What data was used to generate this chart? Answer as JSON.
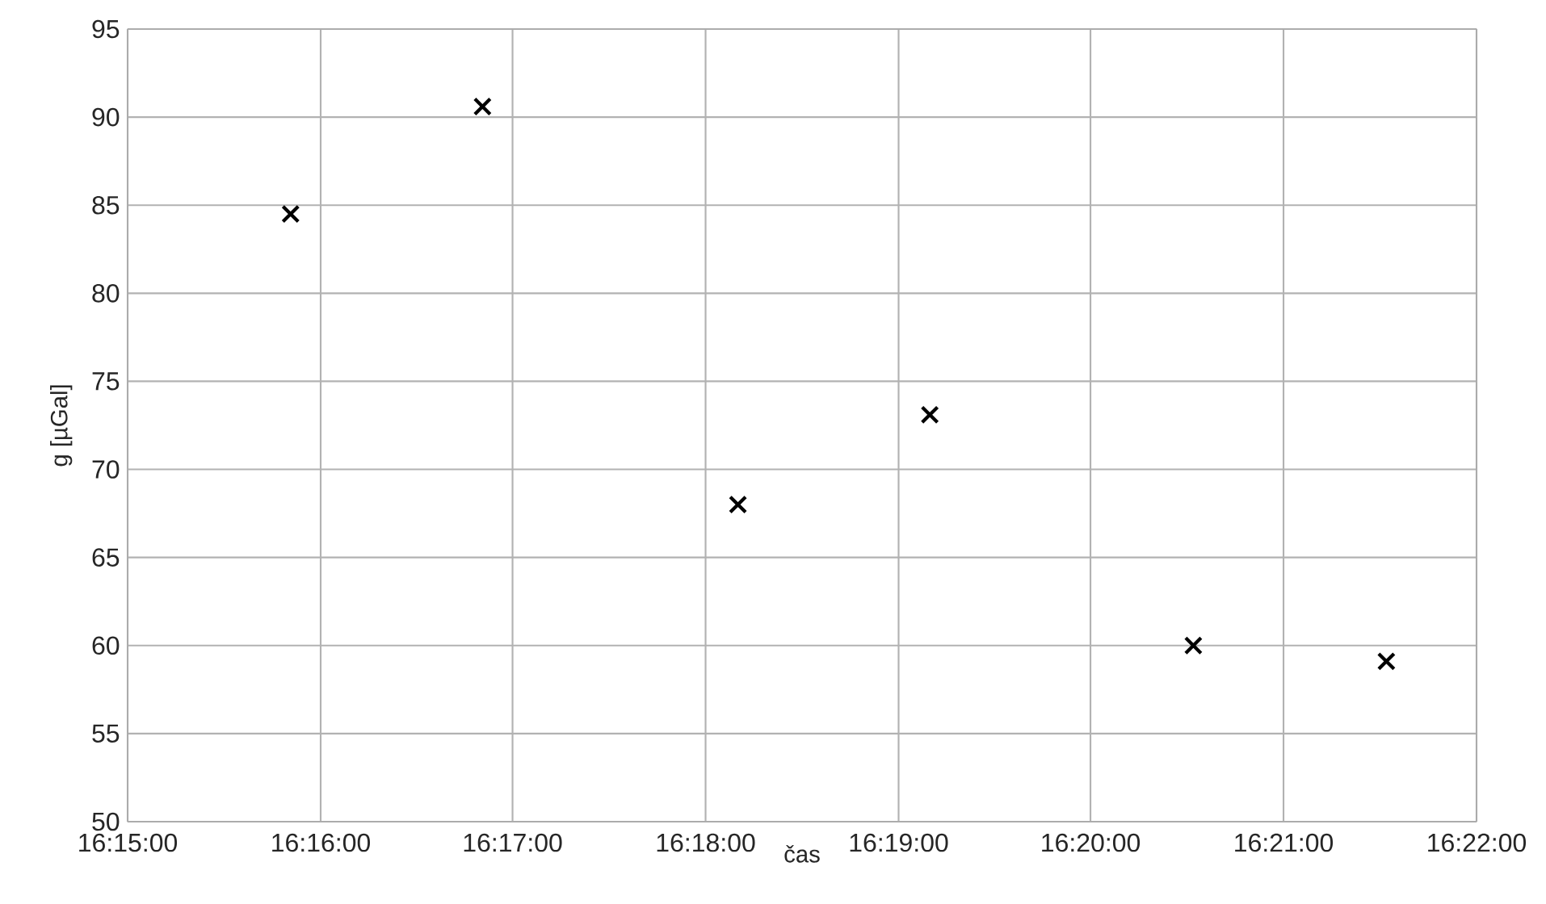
{
  "chart_data": {
    "type": "scatter",
    "xlabel": "čas",
    "ylabel": "g [µGal]",
    "x": [
      16.2641,
      16.2807,
      16.3028,
      16.3194,
      16.3422,
      16.3589
    ],
    "values": [
      84.5,
      90.6,
      68.0,
      73.1,
      60.0,
      59.1
    ],
    "color": "#000000",
    "marker": "cross",
    "grid": true,
    "xlim": [
      16.25,
      16.3667
    ],
    "xticks": [
      {
        "value": 16.25,
        "label": "16:15:00"
      },
      {
        "value": 16.2667,
        "label": "16:16:00"
      },
      {
        "value": 16.2833,
        "label": "16:17:00"
      },
      {
        "value": 16.3,
        "label": "16:18:00"
      },
      {
        "value": 16.3167,
        "label": "16:19:00"
      },
      {
        "value": 16.3333,
        "label": "16:20:00"
      },
      {
        "value": 16.35,
        "label": "16:21:00"
      },
      {
        "value": 16.3667,
        "label": "16:22:00"
      }
    ],
    "ylim": [
      50,
      95
    ],
    "yticks": [
      50,
      55,
      60,
      65,
      70,
      75,
      80,
      85,
      90,
      95
    ]
  }
}
